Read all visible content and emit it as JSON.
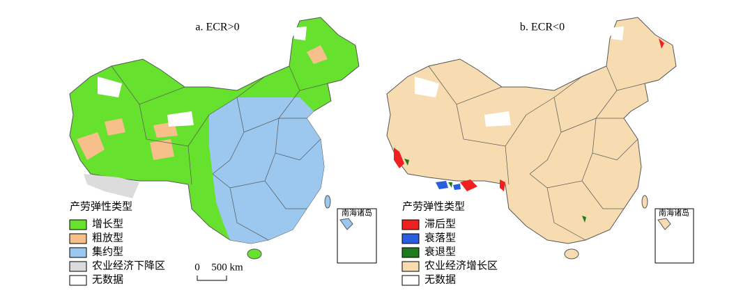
{
  "panels": [
    {
      "title": "a. ECR>0",
      "legend": {
        "title": "产劳弹性类型",
        "items": [
          {
            "label": "增长型",
            "color": "#66e22e"
          },
          {
            "label": "粗放型",
            "color": "#f7c08a"
          },
          {
            "label": "集约型",
            "color": "#9cc8f0"
          },
          {
            "label": "农业经济下降区",
            "color": "#dcdcdc"
          },
          {
            "label": "无数据",
            "color": "#ffffff"
          }
        ]
      },
      "inset_label": "南海诸岛",
      "scale_bar": {
        "start": "0",
        "end": "500 km"
      }
    },
    {
      "title": "b. ECR<0",
      "legend": {
        "title": "产劳弹性类型",
        "items": [
          {
            "label": "滞后型",
            "color": "#f02020"
          },
          {
            "label": "衰落型",
            "color": "#2a5ee0"
          },
          {
            "label": "衰退型",
            "color": "#1f7a1f"
          },
          {
            "label": "农业经济增长区",
            "color": "#f6dcb0"
          },
          {
            "label": "无数据",
            "color": "#ffffff"
          }
        ]
      },
      "inset_label": "南海诸岛"
    }
  ]
}
